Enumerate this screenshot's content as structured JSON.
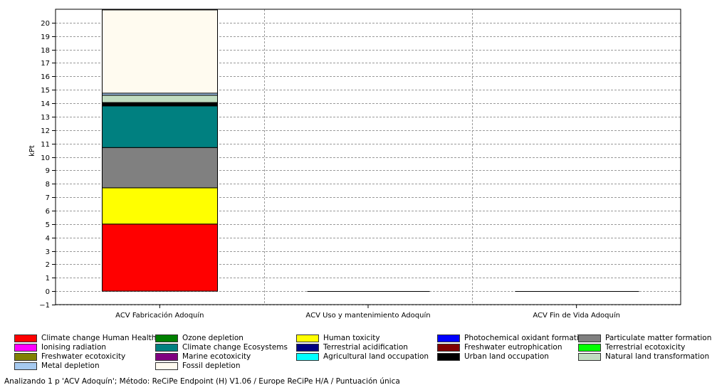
{
  "chart_data": {
    "type": "stacked-bar",
    "ylabel": "kPt",
    "ylim": [
      -1,
      21
    ],
    "yticks": [
      -1,
      0,
      1,
      2,
      3,
      4,
      5,
      6,
      7,
      8,
      9,
      10,
      11,
      12,
      13,
      14,
      15,
      16,
      17,
      18,
      19,
      20
    ],
    "grid": true,
    "categories": [
      "ACV Fabricación Adoquín",
      "ACV Uso y mantenimiento Adoquín",
      "ACV Fin de Vida Adoquín"
    ],
    "series": [
      {
        "name": "Climate change Human Health",
        "color": "#ff0000",
        "values": [
          5.0,
          0,
          0
        ]
      },
      {
        "name": "Ozone depletion",
        "color": "#008000",
        "values": [
          0.0,
          0,
          0
        ]
      },
      {
        "name": "Human toxicity",
        "color": "#ffff00",
        "values": [
          2.7,
          0,
          0
        ]
      },
      {
        "name": "Photochemical oxidant formation",
        "color": "#0000ff",
        "values": [
          0.0,
          0,
          0
        ]
      },
      {
        "name": "Particulate matter formation",
        "color": "#808080",
        "values": [
          3.0,
          0,
          0
        ]
      },
      {
        "name": "Ionising radiation",
        "color": "#ff00ff",
        "values": [
          0.0,
          0,
          0
        ]
      },
      {
        "name": "Climate change Ecosystems",
        "color": "#008080",
        "values": [
          3.1,
          0,
          0
        ]
      },
      {
        "name": "Terrestrial acidification",
        "color": "#000080",
        "values": [
          0.0,
          0,
          0
        ]
      },
      {
        "name": "Freshwater eutrophication",
        "color": "#800000",
        "values": [
          0.0,
          0,
          0
        ]
      },
      {
        "name": "Terrestrial ecotoxicity",
        "color": "#00ff00",
        "values": [
          0.0,
          0,
          0
        ]
      },
      {
        "name": "Freshwater ecotoxicity",
        "color": "#808000",
        "values": [
          0.0,
          0,
          0
        ]
      },
      {
        "name": "Marine ecotoxicity",
        "color": "#800080",
        "values": [
          0.0,
          0,
          0
        ]
      },
      {
        "name": "Agricultural land occupation",
        "color": "#00ffff",
        "values": [
          0.0,
          0,
          0
        ]
      },
      {
        "name": "Urban land occupation",
        "color": "#000000",
        "values": [
          0.25,
          0,
          0
        ]
      },
      {
        "name": "Natural land transformation",
        "color": "#c0dcc0",
        "values": [
          0.55,
          0,
          0
        ]
      },
      {
        "name": "Metal depletion",
        "color": "#a6caf0",
        "values": [
          0.15,
          0,
          0
        ]
      },
      {
        "name": "Fossil depletion",
        "color": "#fffbf0",
        "values": [
          6.2,
          0,
          0
        ]
      }
    ]
  },
  "status_text": "Analizando 1 p 'ACV Adoquín';  Método: ReCiPe Endpoint (H) V1.06 / Europe ReCiPe H/A / Puntuación única"
}
